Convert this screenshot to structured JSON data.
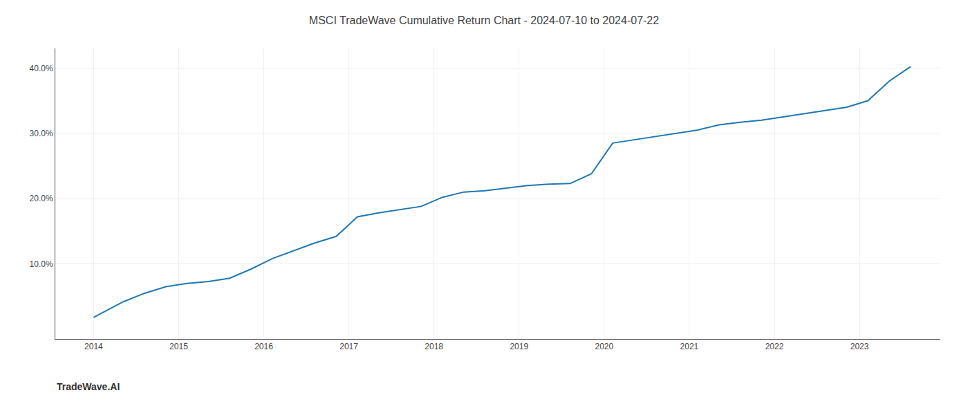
{
  "chart_data": {
    "type": "line",
    "title": "MSCI TradeWave Cumulative Return Chart - 2024-07-10 to 2024-07-22",
    "x": [
      2014.0,
      2014.15,
      2014.35,
      2014.6,
      2014.85,
      2015.1,
      2015.35,
      2015.6,
      2015.85,
      2016.1,
      2016.35,
      2016.6,
      2016.85,
      2017.1,
      2017.35,
      2017.6,
      2017.85,
      2018.1,
      2018.35,
      2018.6,
      2018.85,
      2019.1,
      2019.35,
      2019.6,
      2019.85,
      2020.1,
      2020.35,
      2020.6,
      2020.85,
      2021.1,
      2021.35,
      2021.6,
      2021.85,
      2022.1,
      2022.35,
      2022.6,
      2022.85,
      2023.1,
      2023.35,
      2023.6
    ],
    "values": [
      1.8,
      2.8,
      4.2,
      5.5,
      6.5,
      7.0,
      7.3,
      7.8,
      9.2,
      10.8,
      12.0,
      13.2,
      14.2,
      17.2,
      17.8,
      18.3,
      18.8,
      20.2,
      21.0,
      21.2,
      21.6,
      22.0,
      22.2,
      22.3,
      23.8,
      28.5,
      29.0,
      29.5,
      30.0,
      30.5,
      31.3,
      31.7,
      32.0,
      32.5,
      33.0,
      33.5,
      34.0,
      35.0,
      38.0,
      40.2
    ],
    "xlim": [
      2013.55,
      2023.95
    ],
    "ylim": [
      -1.5,
      43.0
    ],
    "xticks": [
      2014,
      2015,
      2016,
      2017,
      2018,
      2019,
      2020,
      2021,
      2022,
      2023
    ],
    "yticks": [
      {
        "value": 10,
        "label": "10.0%"
      },
      {
        "value": 20,
        "label": "20.0%"
      },
      {
        "value": 30,
        "label": "30.0%"
      },
      {
        "value": 40,
        "label": "40.0%"
      }
    ],
    "grid": true,
    "annotations": [
      "TradeWave.AI"
    ]
  }
}
